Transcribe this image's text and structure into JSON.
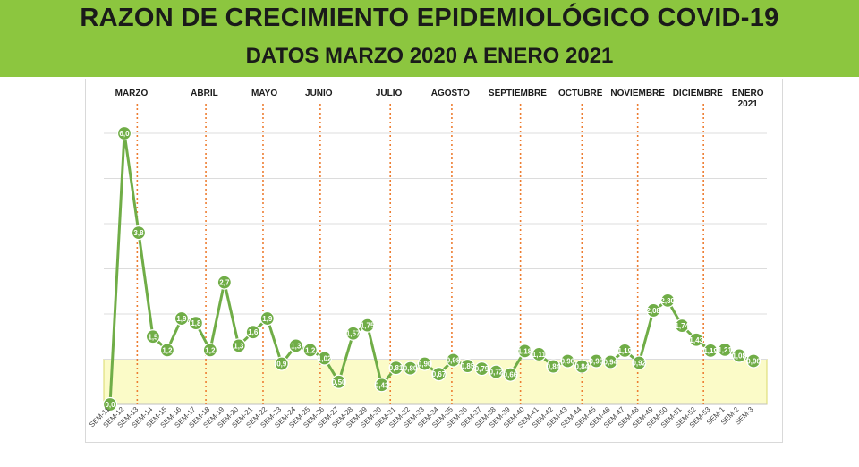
{
  "header": {
    "title": "RAZON DE CRECIMIENTO EPIDEMIOLÓGICO COVID-19",
    "subtitle": "DATOS MARZO 2020 A ENERO 2021"
  },
  "colors": {
    "banner": "#8cc63f",
    "line": "#70ad47",
    "band": "#fbfbc8",
    "month_divider": "#ed7d31"
  },
  "chart_data": {
    "type": "line",
    "title": "RAZON DE CRECIMIENTO EPIDEMIOLÓGICO COVID-19",
    "subtitle": "DATOS MARZO 2020 A ENERO 2021",
    "categories": [
      "SEM-11",
      "SEM-12",
      "SEM-13",
      "SEM-14",
      "SEM-15",
      "SEM-16",
      "SEM-17",
      "SEM-18",
      "SEM-19",
      "SEM-20",
      "SEM-21",
      "SEM-22",
      "SEM-23",
      "SEM-24",
      "SEM-25",
      "SEM-26",
      "SEM-27",
      "SEM-28",
      "SEM-29",
      "SEM-30",
      "SEM-31",
      "SEM-32",
      "SEM-33",
      "SEM-34",
      "SEM-35",
      "SEM-36",
      "SEM-37",
      "SEM-38",
      "SEM-39",
      "SEM-40",
      "SEM-41",
      "SEM-42",
      "SEM-43",
      "SEM-44",
      "SEM-45",
      "SEM-46",
      "SEM-47",
      "SEM-48",
      "SEM-49",
      "SEM-50",
      "SEM-51",
      "SEM-52",
      "SEM-53",
      "SEM-1",
      "SEM-2",
      "SEM-3"
    ],
    "values": [
      0.0,
      6.0,
      3.8,
      1.5,
      1.2,
      1.9,
      1.8,
      1.2,
      2.7,
      1.3,
      1.6,
      1.9,
      0.9,
      1.3,
      1.2,
      1.02,
      0.5,
      1.57,
      1.75,
      0.43,
      0.81,
      0.8,
      0.9,
      0.67,
      0.98,
      0.85,
      0.79,
      0.72,
      0.66,
      1.18,
      1.11,
      0.84,
      0.96,
      0.84,
      0.96,
      0.94,
      1.19,
      0.92,
      2.08,
      2.3,
      1.74,
      1.43,
      1.19,
      1.21,
      1.08,
      0.96
    ],
    "labels": [
      "0,0",
      "6,0",
      "3,8",
      "1,5",
      "1,2",
      "1,9",
      "1,8",
      "1,2",
      "2,7",
      "1,3",
      "1,6",
      "1,9",
      "0,9",
      "1,3",
      "1,2",
      "1,02",
      "0,50",
      "1,57",
      "1,75",
      "0,43",
      "0,81",
      "0,80",
      "0,90",
      "0,67",
      "0,98",
      "0,85",
      "0,79",
      "0,72",
      "0,66",
      "1,18",
      "1,11",
      "0,84",
      "0,96",
      "0,84",
      "0,96",
      "0,94",
      "1,19",
      "0,92",
      "2,08",
      "2,30",
      "1,74",
      "1,43",
      "1,19",
      "1,21",
      "1,08",
      "0,96"
    ],
    "ylim": [
      0,
      6.5
    ],
    "gridlines": [
      1,
      2,
      3,
      4,
      5,
      6
    ],
    "band": [
      0,
      1
    ],
    "grid": true,
    "months": [
      {
        "label": "MARZO",
        "index": 1.5,
        "divider": 1.9
      },
      {
        "label": "ABRIL",
        "index": 6.6,
        "divider": 6.7
      },
      {
        "label": "MAYO",
        "index": 10.8,
        "divider": 10.7
      },
      {
        "label": "JUNIO",
        "index": 14.6,
        "divider": 14.7
      },
      {
        "label": "JULIO",
        "index": 19.5,
        "divider": 19.6
      },
      {
        "label": "AGOSTO",
        "index": 23.8,
        "divider": 23.9
      },
      {
        "label": "SEPTIEMBRE",
        "index": 28.5,
        "divider": 28.7
      },
      {
        "label": "OCTUBRE",
        "index": 32.9,
        "divider": 33.0
      },
      {
        "label": "NOVIEMBRE",
        "index": 36.9,
        "divider": 36.9
      },
      {
        "label": "DICIEMBRE",
        "index": 41.1,
        "divider": 41.5
      },
      {
        "label": "ENERO\n2021",
        "index": 44.6,
        "divider": null
      }
    ]
  }
}
